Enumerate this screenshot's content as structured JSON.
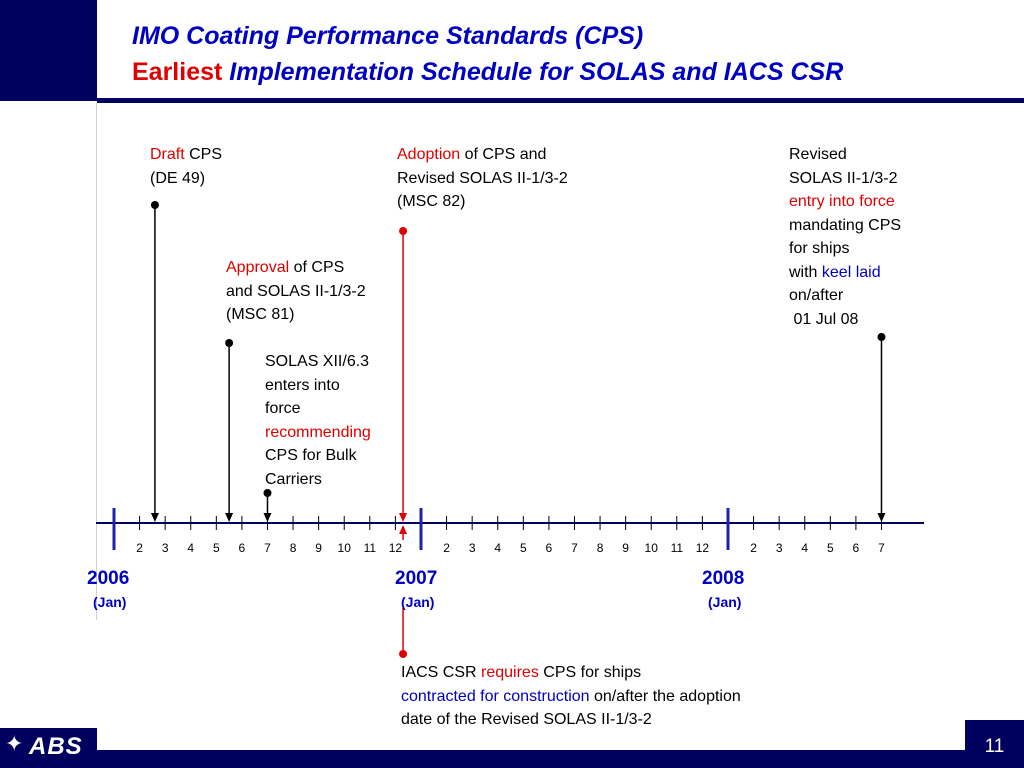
{
  "header": {
    "title_line1": "IMO Coating Performance Standards (CPS)",
    "title_line2_highlight": "Earliest",
    "title_line2_rest": " Implementation Schedule for SOLAS and IACS CSR"
  },
  "footer": {
    "logo_text": "ABS",
    "logo_icon": "eagle-emblem-icon",
    "page_number": "11"
  },
  "timeline": {
    "years": [
      {
        "year": "2006",
        "month": "(Jan)"
      },
      {
        "year": "2007",
        "month": "(Jan)"
      },
      {
        "year": "2008",
        "month": "(Jan)"
      }
    ],
    "months_2006": [
      "2",
      "3",
      "4",
      "5",
      "6",
      "7",
      "8",
      "9",
      "10",
      "11",
      "12"
    ],
    "months_2007": [
      "2",
      "3",
      "4",
      "5",
      "6",
      "7",
      "8",
      "9",
      "10",
      "11",
      "12"
    ],
    "months_2008": [
      "2",
      "3",
      "4",
      "5",
      "6",
      "7"
    ]
  },
  "events": {
    "draft": {
      "highlight": "Draft",
      "rest1": " CPS",
      "line2": "(DE 49)"
    },
    "approval": {
      "highlight": "Approval",
      "rest1": " of CPS",
      "line2": "and SOLAS II-1/3-2",
      "line3": "(MSC 81)"
    },
    "solas_xii": {
      "line1": "SOLAS XII/6.3",
      "line2": "enters into",
      "line3": "force",
      "highlight": "recommending",
      "line5": "CPS for Bulk",
      "line6": "Carriers"
    },
    "adoption": {
      "highlight": "Adoption",
      "rest1": " of CPS and",
      "line2": "Revised SOLAS II-1/3-2",
      "line3": "(MSC 82)"
    },
    "revised": {
      "line1": "Revised",
      "line2": "SOLAS II-1/3-2",
      "highlight_red": "entry into force",
      "line4": "mandating CPS",
      "line5": "for ships",
      "line6_pre": "with ",
      "highlight_blue": "keel laid",
      "line7": "on/after",
      "line8": " 01 Jul 08"
    },
    "iacs": {
      "pre": "IACS CSR ",
      "highlight_red": "requires",
      "rest1": " CPS for ships",
      "highlight_blue": "contracted for construction",
      "rest2": " on/after the adoption",
      "line3": "date of the Revised SOLAS II-1/3-2"
    }
  },
  "colors": {
    "navy": "#00005f",
    "title_blue": "#0000c0",
    "accent_red": "#e00000",
    "year_bar": "#2020b0"
  }
}
